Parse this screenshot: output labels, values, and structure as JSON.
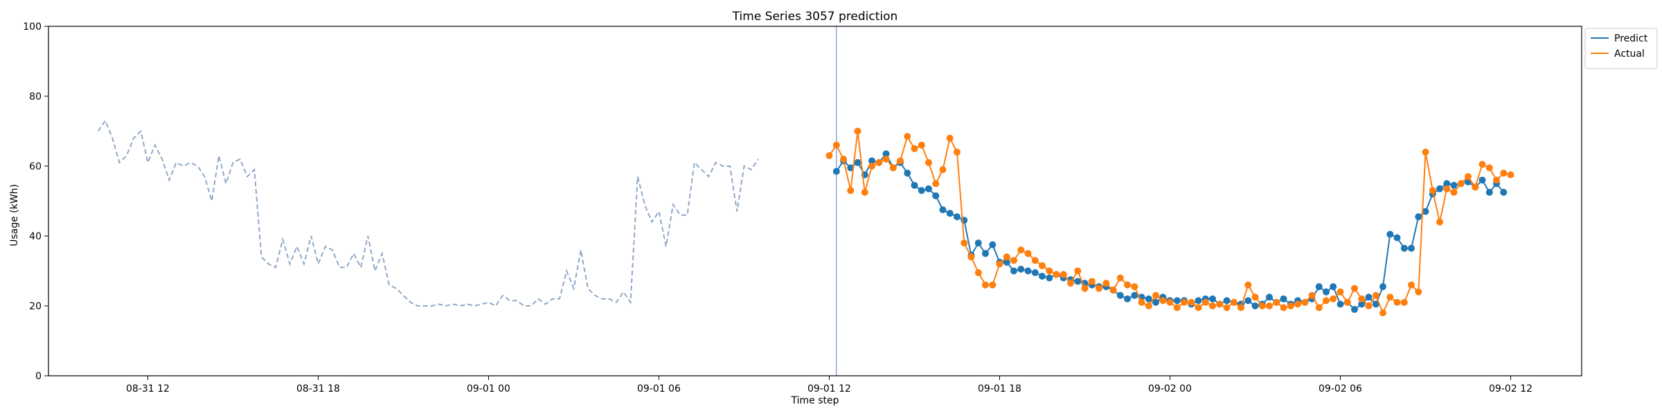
{
  "chart_data": {
    "type": "line",
    "title": "Time Series 3057 prediction",
    "xlabel": "Time step",
    "ylabel": "Usage (kWh)",
    "ylim": [
      0,
      100
    ],
    "xlim": [
      "08-31 08:30",
      "09-02 14:30"
    ],
    "yticks": [
      0,
      20,
      40,
      60,
      80,
      100
    ],
    "xticks": [
      {
        "t": "08-31 12:00",
        "label": "08-31 12"
      },
      {
        "t": "08-31 18:00",
        "label": "08-31 18"
      },
      {
        "t": "09-01 00:00",
        "label": "09-01 00"
      },
      {
        "t": "09-01 06:00",
        "label": "09-01 06"
      },
      {
        "t": "09-01 12:00",
        "label": "09-01 12"
      },
      {
        "t": "09-01 18:00",
        "label": "09-01 18"
      },
      {
        "t": "09-02 00:00",
        "label": "09-02 00"
      },
      {
        "t": "09-02 06:00",
        "label": "09-02 06"
      },
      {
        "t": "09-02 12:00",
        "label": "09-02 12"
      }
    ],
    "grid": false,
    "legend_position": "upper-right-outside",
    "forecast_start": "09-01 12:15",
    "series": [
      {
        "name": "",
        "role": "history",
        "color": "#8fa8c8",
        "style": "dashed",
        "start": "08-31 10:15",
        "step_minutes": 15,
        "values": [
          70,
          73,
          68,
          61,
          63,
          68,
          70,
          61,
          66,
          62,
          56,
          61,
          60,
          61,
          60,
          57,
          50,
          63,
          55,
          61,
          62,
          57,
          59,
          34,
          32,
          31,
          39,
          32,
          37,
          32,
          40,
          32,
          37,
          36,
          31,
          31,
          35,
          31,
          40,
          30,
          35,
          26,
          25,
          23,
          21,
          20,
          20,
          20,
          20.5,
          20,
          20.5,
          20,
          20.5,
          20,
          20.5,
          21,
          20,
          23,
          21.5,
          21.5,
          20,
          20,
          22,
          20.5,
          22,
          22,
          30,
          25,
          36,
          25,
          23,
          22,
          22,
          21,
          24,
          21,
          57,
          49,
          44,
          47,
          37,
          49,
          46,
          46,
          61,
          59,
          57,
          61,
          60,
          60,
          47,
          60,
          59,
          62
        ]
      },
      {
        "name": "Predict",
        "role": "predict",
        "color": "#1f77b4",
        "style": "solid-dots",
        "start": "09-01 12:15",
        "step_minutes": 15,
        "values": [
          58.5,
          61.5,
          59.5,
          61,
          57.5,
          61.5,
          61,
          63.5,
          59.5,
          61,
          58,
          54.5,
          53,
          53.5,
          51.5,
          47.5,
          46.5,
          45.5,
          44.5,
          34.5,
          38,
          35,
          37.5,
          32.5,
          32.5,
          30,
          30.5,
          30,
          29.5,
          28.5,
          28,
          29,
          28,
          27.5,
          27,
          26.5,
          26,
          25.5,
          25.5,
          24.5,
          23,
          22,
          23,
          22.5,
          22,
          21,
          22.5,
          21.5,
          21.5,
          21.5,
          20.5,
          21.5,
          22,
          22,
          20.5,
          21.5,
          21,
          20.5,
          21.5,
          20,
          20.5,
          22.5,
          21,
          22,
          20.5,
          21.5,
          21,
          22,
          25.5,
          24,
          25.5,
          20.5,
          21,
          19,
          20.5,
          22.5,
          20.5,
          25.5,
          40.5,
          39.5,
          36.5,
          36.5,
          45.5,
          47,
          52,
          53.5,
          55,
          54.5,
          55,
          55.5,
          54,
          56,
          52.5,
          55,
          52.5
        ]
      },
      {
        "name": "Actual",
        "role": "actual",
        "color": "#ff7f0e",
        "style": "solid-dots",
        "start": "09-01 12:00",
        "step_minutes": 15,
        "values": [
          63,
          66,
          62,
          53,
          70,
          52.5,
          60,
          61,
          62,
          59.5,
          61.5,
          68.5,
          65,
          66,
          61,
          55,
          59,
          68,
          64,
          38,
          34,
          29.5,
          26,
          26,
          32,
          34,
          33,
          36,
          35,
          33,
          31.5,
          30,
          29,
          29,
          26.5,
          30,
          25,
          27,
          25,
          26.5,
          24.5,
          28,
          26,
          25.5,
          21,
          20,
          23,
          21.5,
          21,
          19.5,
          21,
          21,
          19.5,
          21,
          20,
          20.5,
          19.5,
          21,
          19.5,
          26,
          22.5,
          20,
          20,
          21,
          19.5,
          20,
          20.5,
          21,
          23,
          19.5,
          21.5,
          22,
          24,
          21,
          25,
          22,
          20,
          23,
          18,
          22.5,
          21,
          21,
          26,
          24,
          64,
          53,
          44,
          53.5,
          52.5,
          55,
          57,
          54,
          60.5,
          59.5,
          56,
          58,
          57.5
        ]
      }
    ]
  }
}
